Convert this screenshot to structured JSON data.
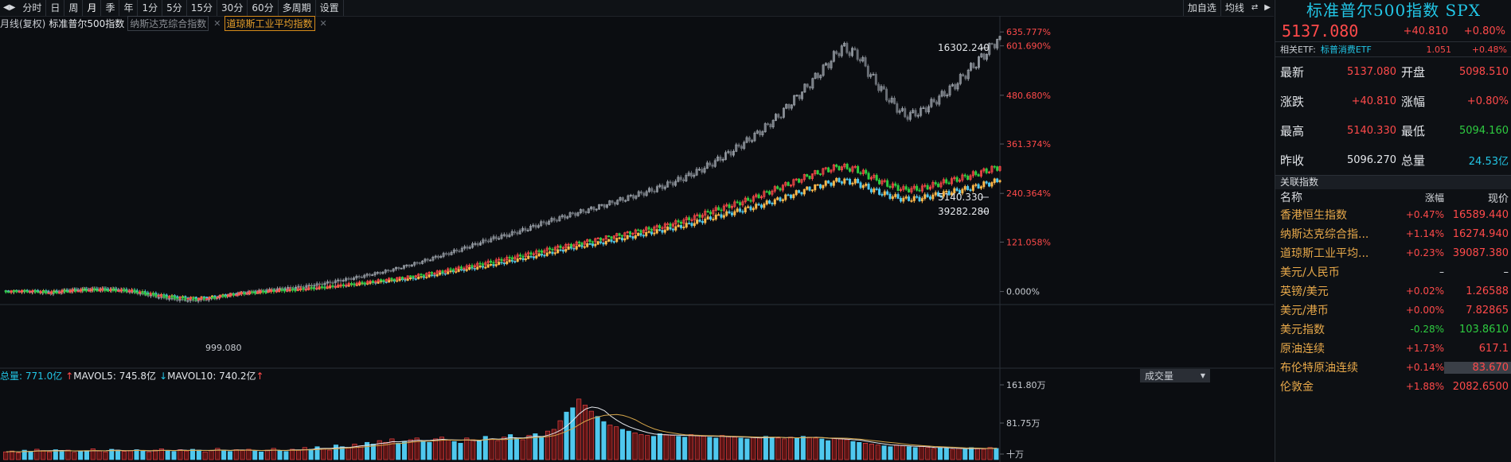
{
  "toolbar": {
    "items": [
      "分时",
      "日",
      "周",
      "月",
      "季",
      "年",
      "1分",
      "5分",
      "15分",
      "30分",
      "60分",
      "多周期",
      "设置"
    ],
    "active_index": 3,
    "right_items": [
      "加自选",
      "均线"
    ]
  },
  "legend": {
    "period": "月线(复权)",
    "main": "标准普尔500指数",
    "compare1": "纳斯达克综合指数",
    "compare2": "道琼斯工业平均指数"
  },
  "chart_data": [
    {
      "type": "candlestick",
      "title": "标准普尔500指数",
      "y_axis_labels": [
        "635.777%",
        "601.690%",
        "480.680%",
        "361.374%",
        "240.364%",
        "121.058%",
        "0.000%"
      ],
      "annotations": {
        "ixic_high": "16302.240",
        "spx_high": "5140.330",
        "dji_high": "39282.280",
        "low_label": "999.080"
      },
      "series": [
        {
          "name": "纳斯达克综合指数",
          "color": "#8a8e94",
          "base": 2200,
          "last": 16302.24,
          "pct_values": [
            0,
            1,
            0,
            -4,
            2,
            4,
            5,
            4,
            0,
            -8,
            -15,
            -20,
            -22,
            -18,
            -10,
            -4,
            0,
            4,
            8,
            12,
            18,
            25,
            32,
            40,
            48,
            58,
            68,
            80,
            92,
            104,
            118,
            130,
            140,
            152,
            166,
            178,
            190,
            200,
            212,
            224,
            236,
            248,
            262,
            278,
            296,
            318,
            342,
            368,
            396,
            430,
            470,
            510,
            552,
            598,
            580,
            520,
            470,
            430,
            440,
            470,
            500,
            540,
            580,
            625
          ]
        },
        {
          "name": "道琼斯工业平均指数",
          "color": "#ffb84a",
          "base": 10700,
          "last": 39282.28,
          "pct_values": [
            0,
            1,
            1,
            -1,
            2,
            4,
            5,
            4,
            2,
            -4,
            -10,
            -14,
            -16,
            -13,
            -8,
            -4,
            -1,
            2,
            4,
            7,
            10,
            14,
            18,
            22,
            26,
            30,
            35,
            42,
            50,
            56,
            62,
            70,
            78,
            86,
            94,
            104,
            112,
            118,
            126,
            134,
            142,
            150,
            158,
            168,
            180,
            190,
            200,
            210,
            222,
            236,
            250,
            262,
            272,
            268,
            250,
            236,
            226,
            228,
            236,
            244,
            252,
            262,
            272
          ]
        },
        {
          "name": "标准普尔500指数",
          "color": "#ff4a4a",
          "base": 1150,
          "last": 5140.33,
          "pct_values": [
            0,
            1,
            0,
            -3,
            1,
            3,
            4,
            3,
            1,
            -6,
            -12,
            -16,
            -18,
            -15,
            -9,
            -4,
            -1,
            2,
            4,
            7,
            11,
            15,
            20,
            25,
            30,
            35,
            41,
            48,
            55,
            62,
            70,
            78,
            86,
            95,
            104,
            112,
            120,
            128,
            136,
            144,
            152,
            160,
            170,
            182,
            196,
            208,
            220,
            234,
            250,
            266,
            282,
            296,
            306,
            300,
            280,
            262,
            250,
            252,
            262,
            272,
            282,
            294,
            306
          ]
        }
      ]
    },
    {
      "type": "bar",
      "title": "成交量",
      "total_label": "总量: 771.0亿",
      "ma5_label": "MAVOL5: 745.8亿",
      "ma10_label": "MAVOL10: 740.2亿",
      "y_axis_labels": [
        "161.80万",
        "81.75万",
        "十万"
      ],
      "max_value": 161.8,
      "values": [
        18,
        20,
        16,
        22,
        19,
        24,
        21,
        18,
        23,
        20,
        22,
        17,
        19,
        21,
        25,
        20,
        18,
        24,
        22,
        19,
        21,
        23,
        20,
        18,
        22,
        25,
        21,
        19,
        23,
        20,
        24,
        22,
        18,
        21,
        26,
        22,
        19,
        23,
        21,
        24,
        20,
        18,
        22,
        26,
        21,
        19,
        24,
        22,
        28,
        24,
        30,
        26,
        22,
        34,
        30,
        28,
        36,
        32,
        40,
        36,
        44,
        40,
        48,
        38,
        42,
        46,
        50,
        44,
        40,
        48,
        52,
        46,
        42,
        38,
        50,
        46,
        44,
        54,
        48,
        44,
        52,
        58,
        50,
        46,
        56,
        60,
        54,
        66,
        70,
        90,
        110,
        120,
        140,
        126,
        112,
        100,
        88,
        80,
        76,
        70,
        66,
        62,
        58,
        56,
        54,
        60,
        58,
        56,
        54,
        52,
        58,
        56,
        54,
        52,
        50,
        56,
        54,
        52,
        50,
        48,
        52,
        50,
        54,
        52,
        50,
        48,
        52,
        50,
        54,
        52,
        50,
        48,
        44,
        50,
        48,
        46,
        42,
        40,
        38,
        36,
        34,
        32,
        30,
        34,
        32,
        30,
        28,
        30,
        28,
        26,
        28,
        26,
        24,
        26,
        24,
        28,
        26,
        24,
        28,
        26
      ],
      "mavol5": 40,
      "mavol10": 38
    }
  ],
  "volume_header": {
    "dropdown_label": "成交量",
    "dropdown_arrow": "▼"
  },
  "panel": {
    "title": "标准普尔500指数 SPX",
    "price": "5137.080",
    "change": "+40.810",
    "change_pct": "+0.80%",
    "etf_label": "相关ETF:",
    "etf_name": "标普消费ETF",
    "etf_price": "1.051",
    "etf_pct": "+0.48%",
    "quotes": [
      {
        "k1": "最新",
        "v1": "5137.080",
        "c1": "up",
        "k2": "开盘",
        "v2": "5098.510",
        "c2": "up"
      },
      {
        "k1": "涨跌",
        "v1": "+40.810",
        "c1": "up",
        "k2": "涨幅",
        "v2": "+0.80%",
        "c2": "up"
      },
      {
        "k1": "最高",
        "v1": "5140.330",
        "c1": "up",
        "k2": "最低",
        "v2": "5094.160",
        "c2": "dn"
      },
      {
        "k1": "昨收",
        "v1": "5096.270",
        "c1": "wh",
        "k2": "总量",
        "v2": "24.53亿",
        "c2": "cy"
      }
    ],
    "related_title": "关联指数",
    "related_head": {
      "nm": "名称",
      "pc": "涨幅",
      "px": "现价"
    },
    "related": [
      {
        "nm": "香港恒生指数",
        "pc": "+0.47%",
        "px": "16589.440",
        "c": "up"
      },
      {
        "nm": "纳斯达克综合指...",
        "pc": "+1.14%",
        "px": "16274.940",
        "c": "up"
      },
      {
        "nm": "道琼斯工业平均...",
        "pc": "+0.23%",
        "px": "39087.380",
        "c": "up"
      },
      {
        "nm": "美元/人民币",
        "pc": "–",
        "px": "–",
        "c": "wh"
      },
      {
        "nm": "英镑/美元",
        "pc": "+0.02%",
        "px": "1.26588",
        "c": "up"
      },
      {
        "nm": "美元/港币",
        "pc": "+0.00%",
        "px": "7.82865",
        "c": "up"
      },
      {
        "nm": "美元指数",
        "pc": "-0.28%",
        "px": "103.8610",
        "c": "dn"
      },
      {
        "nm": "原油连续",
        "pc": "+1.73%",
        "px": "617.1",
        "c": "up"
      },
      {
        "nm": "布伦特原油连续",
        "pc": "+0.14%",
        "px": "83.670",
        "c": "up",
        "hl": true
      },
      {
        "nm": "伦敦金",
        "pc": "+1.88%",
        "px": "2082.6500",
        "c": "up"
      }
    ]
  }
}
